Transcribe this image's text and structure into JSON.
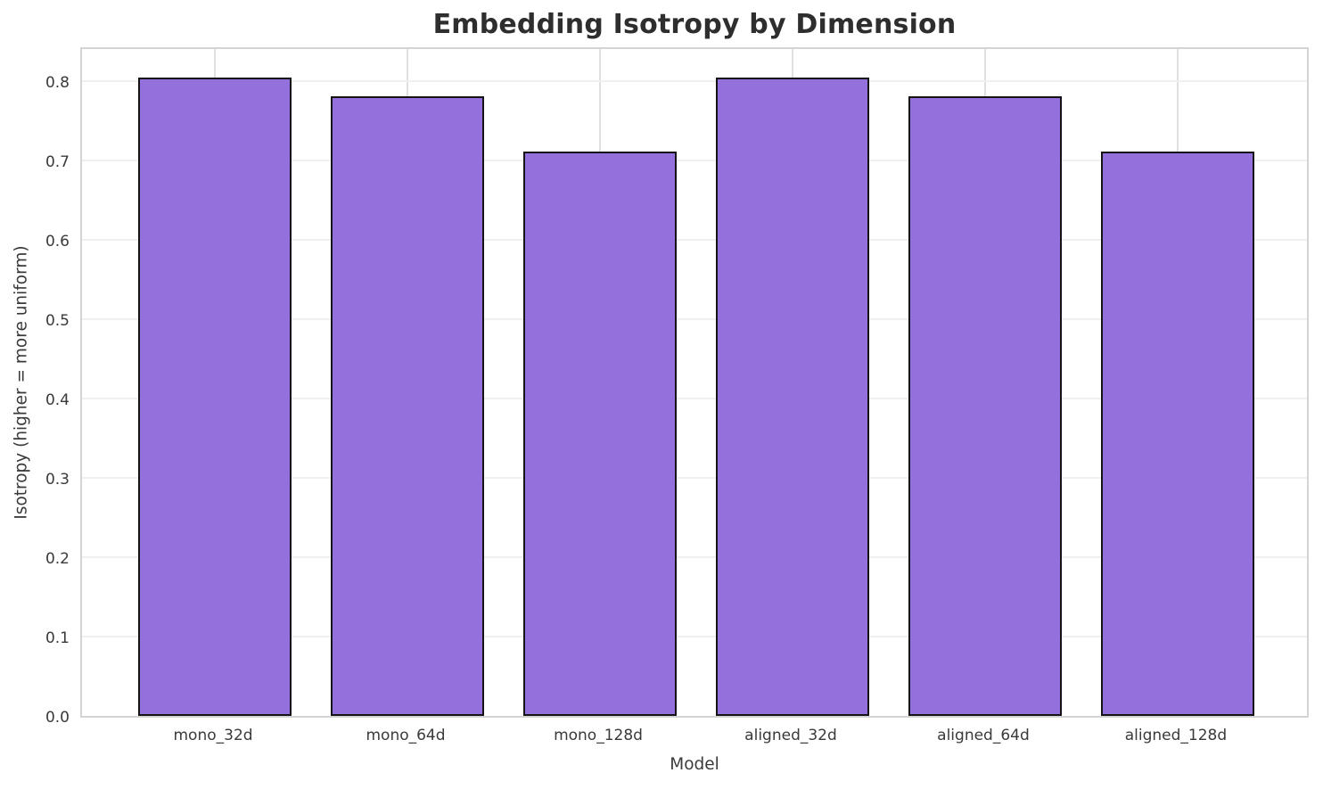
{
  "chart_data": {
    "type": "bar",
    "title": "Embedding Isotropy by Dimension",
    "xlabel": "Model",
    "ylabel": "Isotropy (higher = more uniform)",
    "categories": [
      "mono_32d",
      "mono_64d",
      "mono_128d",
      "aligned_32d",
      "aligned_64d",
      "aligned_128d"
    ],
    "values": [
      0.805,
      0.781,
      0.711,
      0.805,
      0.781,
      0.711
    ],
    "yticks": [
      0.0,
      0.1,
      0.2,
      0.3,
      0.4,
      0.5,
      0.6,
      0.7,
      0.8
    ],
    "ytick_decimals": 1,
    "ylim": [
      0,
      0.845
    ],
    "xlim": [
      -0.69,
      5.69
    ],
    "bar_width_units": 0.8,
    "grid": true,
    "legend": null,
    "colors": {
      "bar_fill": "#9370DB",
      "bar_edge": "#141414",
      "grid_h": "#f0f0f0",
      "grid_v": "#e0e0e0",
      "spine": "#d4d4d4",
      "tick_text": "#3a3a3a",
      "title_text": "#2e2e2e",
      "background": "#ffffff"
    }
  }
}
